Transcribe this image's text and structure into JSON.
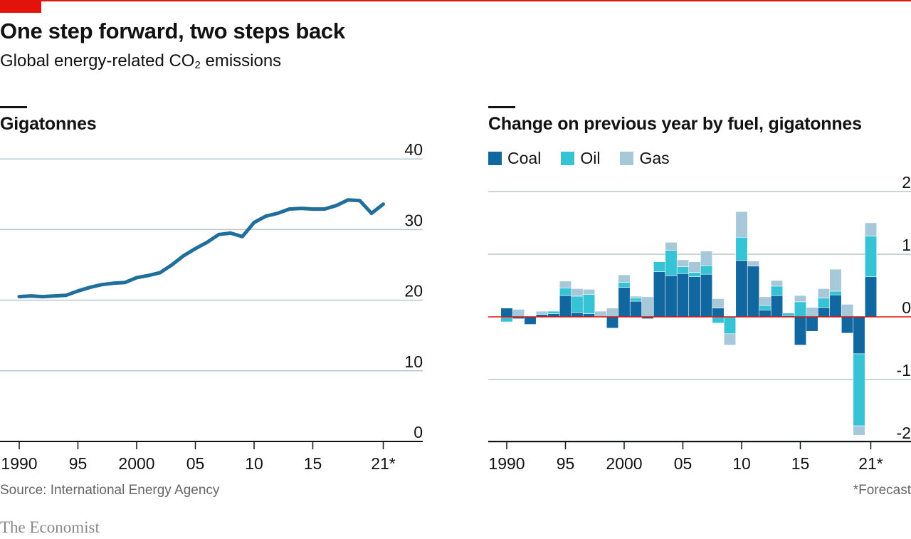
{
  "header": {
    "title": "One step forward, two steps back",
    "subtitle_main": "Global energy-related CO",
    "subtitle_sub": "2",
    "subtitle_tail": " emissions"
  },
  "source": "Source: International Energy Agency",
  "footnote": "*Forecast",
  "brand": "The Economist",
  "colors": {
    "accent": "#e3120b",
    "line": "#1f6e9c",
    "coal": "#1167a0",
    "oil": "#36c3d6",
    "gas": "#a6c8d9",
    "grid": "#b7c6d0"
  },
  "chart_data": [
    {
      "type": "line",
      "title": "Gigatonnes",
      "x_tick_labels": [
        "1990",
        "95",
        "2000",
        "05",
        "10",
        "15",
        "21*"
      ],
      "x_tick_values": [
        1990,
        1995,
        2000,
        2005,
        2010,
        2015,
        2021
      ],
      "y_tick_labels": [
        "40",
        "30",
        "20",
        "10",
        "0"
      ],
      "y_tick_values": [
        40,
        30,
        20,
        10,
        0
      ],
      "ylim": [
        0,
        40
      ],
      "grid": true,
      "x": [
        1990,
        1991,
        1992,
        1993,
        1994,
        1995,
        1996,
        1997,
        1998,
        1999,
        2000,
        2001,
        2002,
        2003,
        2004,
        2005,
        2006,
        2007,
        2008,
        2009,
        2010,
        2011,
        2012,
        2013,
        2014,
        2015,
        2016,
        2017,
        2018,
        2019,
        2020,
        2021
      ],
      "series": [
        {
          "values": [
            20.5,
            20.6,
            20.5,
            20.6,
            20.7,
            21.3,
            21.8,
            22.2,
            22.4,
            22.5,
            23.2,
            23.5,
            23.9,
            25.0,
            26.3,
            27.3,
            28.2,
            29.3,
            29.5,
            29.0,
            31.0,
            31.9,
            32.3,
            32.9,
            33.0,
            32.9,
            32.9,
            33.4,
            34.2,
            34.1,
            32.3,
            33.6
          ]
        }
      ]
    },
    {
      "type": "bar",
      "stacked": true,
      "title": "Change on previous year by fuel, gigatonnes",
      "legend_position": "top-left",
      "x_tick_labels": [
        "1990",
        "95",
        "2000",
        "05",
        "10",
        "15",
        "21*"
      ],
      "x_tick_values": [
        1990,
        1995,
        2000,
        2005,
        2010,
        2015,
        2021
      ],
      "y_tick_labels": [
        "2",
        "1",
        "0",
        "-1",
        "-2"
      ],
      "y_tick_values": [
        2,
        1,
        0,
        -1,
        -2
      ],
      "ylim": [
        -2,
        2
      ],
      "grid": true,
      "zero_line_color": "#e3120b",
      "categories": [
        1990,
        1991,
        1992,
        1993,
        1994,
        1995,
        1996,
        1997,
        1998,
        1999,
        2000,
        2001,
        2002,
        2003,
        2004,
        2005,
        2006,
        2007,
        2008,
        2009,
        2010,
        2011,
        2012,
        2013,
        2014,
        2015,
        2016,
        2017,
        2018,
        2019,
        2020,
        2021
      ],
      "series": [
        {
          "name": "Coal",
          "values": [
            0.14,
            -0.03,
            -0.12,
            0.04,
            0.05,
            0.34,
            0.07,
            0.05,
            0.0,
            -0.18,
            0.47,
            0.25,
            -0.03,
            0.72,
            0.66,
            0.69,
            0.64,
            0.68,
            0.14,
            0.0,
            0.9,
            0.81,
            0.11,
            0.34,
            0.02,
            -0.45,
            -0.23,
            0.15,
            0.35,
            -0.26,
            -0.59,
            0.64
          ]
        },
        {
          "name": "Oil",
          "values": [
            -0.08,
            0.0,
            0.0,
            0.0,
            0.04,
            0.12,
            0.26,
            0.31,
            0.0,
            0.0,
            0.08,
            0.05,
            0.0,
            0.16,
            0.4,
            0.11,
            0.07,
            0.14,
            -0.1,
            -0.27,
            0.37,
            0.0,
            0.07,
            0.15,
            0.04,
            0.24,
            0.0,
            0.15,
            0.06,
            0.0,
            -1.15,
            0.65
          ]
        },
        {
          "name": "Gas",
          "values": [
            0.0,
            0.12,
            0.0,
            0.05,
            0.0,
            0.11,
            0.12,
            0.08,
            0.09,
            0.14,
            0.12,
            0.03,
            0.32,
            0.0,
            0.13,
            0.11,
            0.17,
            0.23,
            0.15,
            -0.18,
            0.41,
            0.08,
            0.14,
            0.09,
            0.0,
            0.1,
            0.15,
            0.15,
            0.35,
            0.2,
            -0.15,
            0.21
          ]
        }
      ]
    }
  ]
}
